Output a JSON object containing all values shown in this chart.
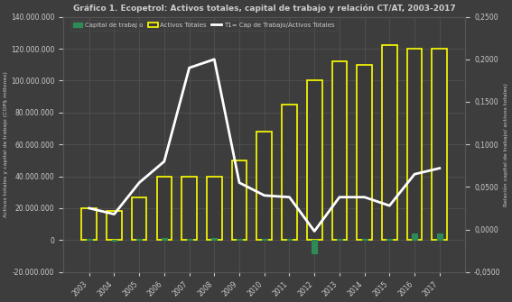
{
  "title": "Gráfico 1. Ecopetrol: Activos totales, capital de trabajo y relación CT/AT, 2003-2017",
  "years": [
    2003,
    2004,
    2005,
    2006,
    2007,
    2008,
    2009,
    2010,
    2011,
    2012,
    2013,
    2014,
    2015,
    2016,
    2017
  ],
  "activos_totales": [
    20000000,
    18000000,
    27000000,
    40000000,
    40000000,
    40000000,
    50000000,
    68000000,
    85000000,
    100000000,
    112000000,
    110000000,
    122000000,
    120000000,
    120000000
  ],
  "capital_trabajo": [
    500000,
    -500000,
    500000,
    1500000,
    1000000,
    1500000,
    1000000,
    500000,
    500000,
    -8000000,
    1000000,
    1000000,
    500000,
    4000000,
    4000000
  ],
  "ratio_ct_at": [
    0.025,
    0.018,
    0.055,
    0.08,
    0.19,
    0.2,
    0.055,
    0.04,
    0.038,
    -0.002,
    0.038,
    0.038,
    0.028,
    0.065,
    0.072
  ],
  "ylabel_left": "Activos totales y capital de trabajo (COP$ millones)",
  "ylabel_right": "Relación capital de trabajo/ activos totales)",
  "legend_labels": [
    "Capital de trabaj o",
    "Activos Totales",
    "T1= Cap de Trabajo/Activos Totales"
  ],
  "bar_color_activos_fill": "#3a3a3a",
  "bar_color_activos_edge": "#ffff00",
  "bar_color_capital_fill": "#2e8b57",
  "bar_color_capital_edge": "#2e8b57",
  "line_color": "#ffffff",
  "background_color": "#3d3d3d",
  "grid_color": "#555555",
  "text_color": "#cccccc",
  "ylim_left": [
    -20000000,
    140000000
  ],
  "ylim_right": [
    -0.05,
    0.25
  ],
  "bar_width": 0.6,
  "figsize": [
    5.67,
    3.35
  ],
  "dpi": 100
}
